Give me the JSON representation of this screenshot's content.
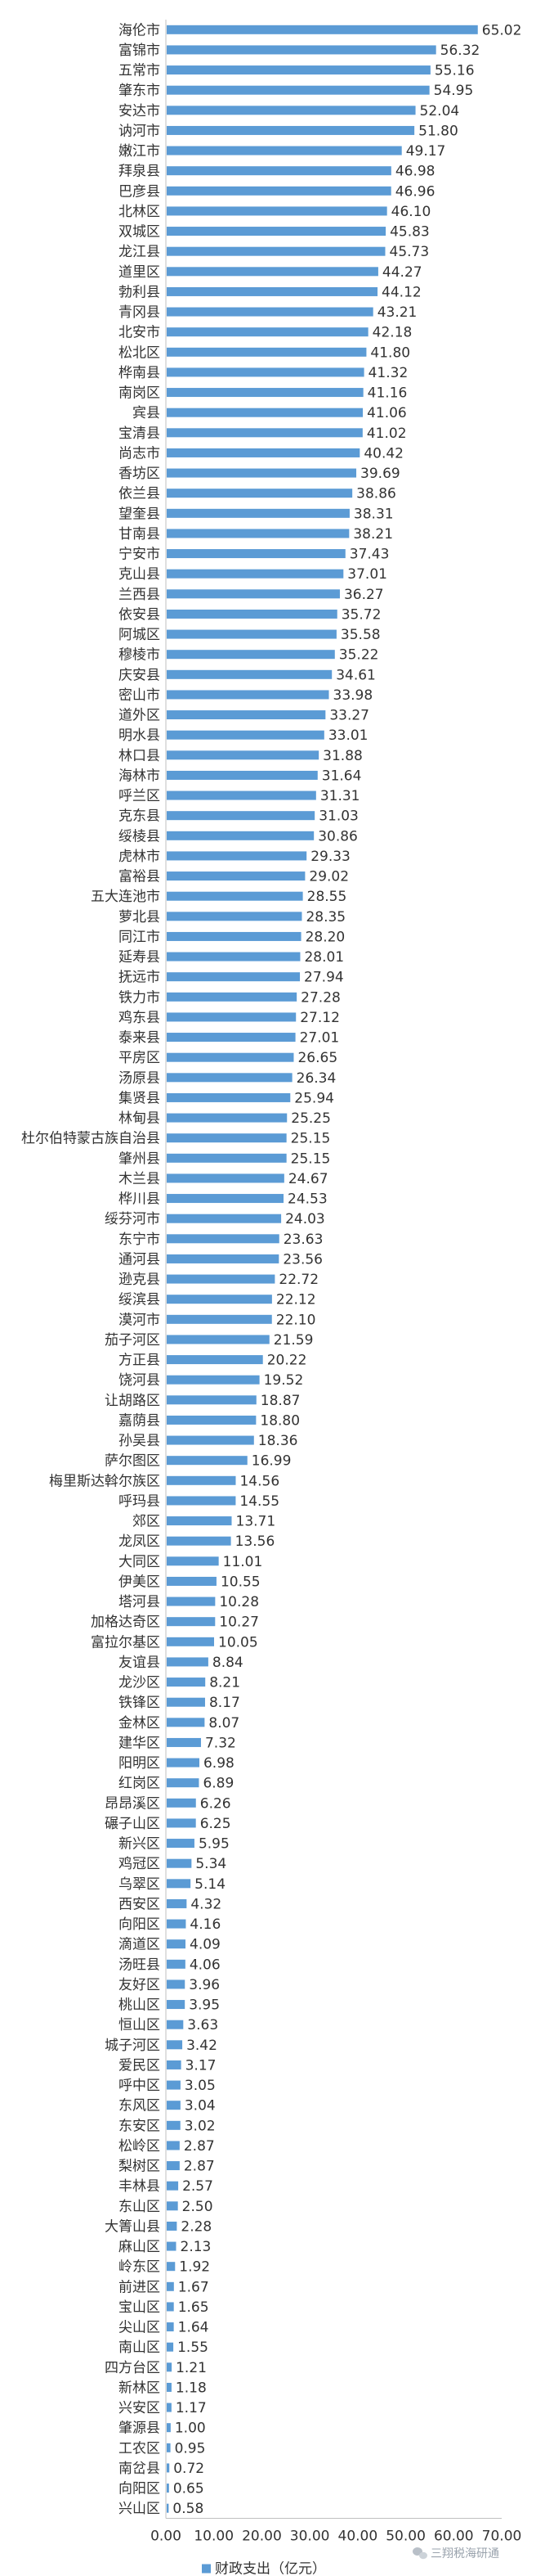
{
  "chart_data": {
    "type": "bar",
    "orientation": "horizontal",
    "categories": [
      "海伦市",
      "富锦市",
      "五常市",
      "肇东市",
      "安达市",
      "讷河市",
      "嫩江市",
      "拜泉县",
      "巴彦县",
      "北林区",
      "双城区",
      "龙江县",
      "道里区",
      "勃利县",
      "青冈县",
      "北安市",
      "松北区",
      "桦南县",
      "南岗区",
      "宾县",
      "宝清县",
      "尚志市",
      "香坊区",
      "依兰县",
      "望奎县",
      "甘南县",
      "宁安市",
      "克山县",
      "兰西县",
      "依安县",
      "阿城区",
      "穆棱市",
      "庆安县",
      "密山市",
      "道外区",
      "明水县",
      "林口县",
      "海林市",
      "呼兰区",
      "克东县",
      "绥棱县",
      "虎林市",
      "富裕县",
      "五大连池市",
      "萝北县",
      "同江市",
      "延寿县",
      "抚远市",
      "铁力市",
      "鸡东县",
      "泰来县",
      "平房区",
      "汤原县",
      "集贤县",
      "林甸县",
      "杜尔伯特蒙古族自治县",
      "肇州县",
      "木兰县",
      "桦川县",
      "绥芬河市",
      "东宁市",
      "通河县",
      "逊克县",
      "绥滨县",
      "漠河市",
      "茄子河区",
      "方正县",
      "饶河县",
      "让胡路区",
      "嘉荫县",
      "孙吴县",
      "萨尔图区",
      "梅里斯达斡尔族区",
      "呼玛县",
      "郊区",
      "龙凤区",
      "大同区",
      "伊美区",
      "塔河县",
      "加格达奇区",
      "富拉尔基区",
      "友谊县",
      "龙沙区",
      "铁锋区",
      "金林区",
      "建华区",
      "阳明区",
      "红岗区",
      "昂昂溪区",
      "碾子山区",
      "新兴区",
      "鸡冠区",
      "乌翠区",
      "西安区",
      "向阳区",
      "滴道区",
      "汤旺县",
      "友好区",
      "桃山区",
      "恒山区",
      "城子河区",
      "爱民区",
      "呼中区",
      "东风区",
      "东安区",
      "松岭区",
      "梨树区",
      "丰林县",
      "东山区",
      "大箐山县",
      "麻山区",
      "岭东区",
      "前进区",
      "宝山区",
      "尖山区",
      "南山区",
      "四方台区",
      "新林区",
      "兴安区",
      "肇源县",
      "工农区",
      "南岔县",
      "向阳区",
      "兴山区"
    ],
    "values": [
      65.02,
      56.32,
      55.16,
      54.95,
      52.04,
      51.8,
      49.17,
      46.98,
      46.96,
      46.1,
      45.83,
      45.73,
      44.27,
      44.12,
      43.21,
      42.18,
      41.8,
      41.32,
      41.16,
      41.06,
      41.02,
      40.42,
      39.69,
      38.86,
      38.31,
      38.21,
      37.43,
      37.01,
      36.27,
      35.72,
      35.58,
      35.22,
      34.61,
      33.98,
      33.27,
      33.01,
      31.88,
      31.64,
      31.31,
      31.03,
      30.86,
      29.33,
      29.02,
      28.55,
      28.35,
      28.2,
      28.01,
      27.94,
      27.28,
      27.12,
      27.01,
      26.65,
      26.34,
      25.94,
      25.25,
      25.15,
      25.15,
      24.67,
      24.53,
      24.03,
      23.63,
      23.56,
      22.72,
      22.12,
      22.1,
      21.59,
      20.22,
      19.52,
      18.87,
      18.8,
      18.36,
      16.99,
      14.56,
      14.55,
      13.71,
      13.56,
      11.01,
      10.55,
      10.28,
      10.27,
      10.05,
      8.84,
      8.21,
      8.17,
      8.07,
      7.32,
      6.98,
      6.89,
      6.26,
      6.25,
      5.95,
      5.34,
      5.14,
      4.32,
      4.16,
      4.09,
      4.06,
      3.96,
      3.95,
      3.63,
      3.42,
      3.17,
      3.05,
      3.04,
      3.02,
      2.87,
      2.87,
      2.57,
      2.5,
      2.28,
      2.13,
      1.92,
      1.67,
      1.65,
      1.64,
      1.55,
      1.21,
      1.18,
      1.17,
      1.0,
      0.95,
      0.72,
      0.65,
      0.58
    ],
    "value_labels": [
      "65.02",
      "56.32",
      "55.16",
      "54.95",
      "52.04",
      "51.80",
      "49.17",
      "46.98",
      "46.96",
      "46.10",
      "45.83",
      "45.73",
      "44.27",
      "44.12",
      "43.21",
      "42.18",
      "41.80",
      "41.32",
      "41.16",
      "41.06",
      "41.02",
      "40.42",
      "39.69",
      "38.86",
      "38.31",
      "38.21",
      "37.43",
      "37.01",
      "36.27",
      "35.72",
      "35.58",
      "35.22",
      "34.61",
      "33.98",
      "33.27",
      "33.01",
      "31.88",
      "31.64",
      "31.31",
      "31.03",
      "30.86",
      "29.33",
      "29.02",
      "28.55",
      "28.35",
      "28.20",
      "28.01",
      "27.94",
      "27.28",
      "27.12",
      "27.01",
      "26.65",
      "26.34",
      "25.94",
      "25.25",
      "25.15",
      "25.15",
      "24.67",
      "24.53",
      "24.03",
      "23.63",
      "23.56",
      "22.72",
      "22.12",
      "22.10",
      "21.59",
      "20.22",
      "19.52",
      "18.87",
      "18.80",
      "18.36",
      "16.99",
      "14.56",
      "14.55",
      "13.71",
      "13.56",
      "11.01",
      "10.55",
      "10.28",
      "10.27",
      "10.05",
      "8.84",
      "8.21",
      "8.17",
      "8.07",
      "7.32",
      "6.98",
      "6.89",
      "6.26",
      "6.25",
      "5.95",
      "5.34",
      "5.14",
      "4.32",
      "4.16",
      "4.09",
      "4.06",
      "3.96",
      "3.95",
      "3.63",
      "3.42",
      "3.17",
      "3.05",
      "3.04",
      "3.02",
      "2.87",
      "2.87",
      "2.57",
      "2.50",
      "2.28",
      "2.13",
      "1.92",
      "1.67",
      "1.65",
      "1.64",
      "1.55",
      "1.21",
      "1.18",
      "1.17",
      "1.00",
      "0.95",
      "0.72",
      "0.65",
      "0.58"
    ],
    "series_name": "财政支出（亿元）",
    "xlim": [
      0,
      70
    ],
    "x_ticks": [
      "0.00",
      "10.00",
      "20.00",
      "30.00",
      "40.00",
      "50.00",
      "60.00",
      "70.00"
    ],
    "grid": false,
    "legend_position": "bottom",
    "bar_color": "#5b9bd5"
  },
  "watermark": {
    "text": "三翔税海研通",
    "icon": "wechat-icon"
  }
}
